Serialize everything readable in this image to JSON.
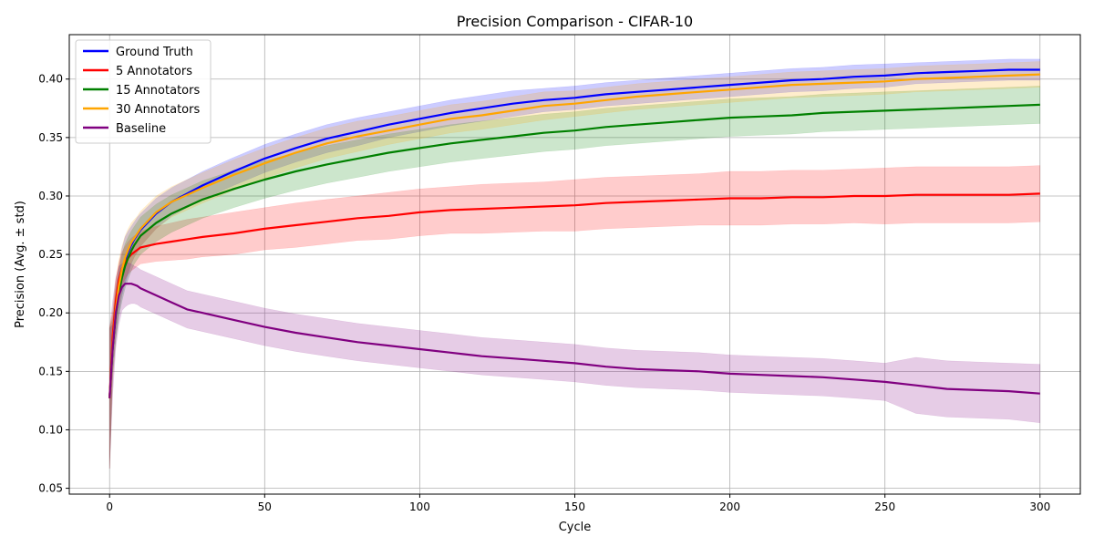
{
  "chart_data": {
    "type": "line",
    "title": "Precision Comparison - CIFAR-10",
    "xlabel": "Cycle",
    "ylabel": "Precision (Avg. ± std)",
    "xlim": [
      -13,
      313
    ],
    "ylim": [
      0.045,
      0.438
    ],
    "xticks": [
      0,
      50,
      100,
      150,
      200,
      250,
      300
    ],
    "yticks": [
      0.05,
      0.1,
      0.15,
      0.2,
      0.25,
      0.3,
      0.35,
      0.4
    ],
    "ytick_labels": [
      "0.05",
      "0.10",
      "0.15",
      "0.20",
      "0.25",
      "0.30",
      "0.35",
      "0.40"
    ],
    "grid": true,
    "legend_position": "top-left",
    "x": [
      0,
      1,
      2,
      3,
      4,
      5,
      6,
      7,
      8,
      9,
      10,
      15,
      20,
      25,
      30,
      40,
      50,
      60,
      70,
      80,
      90,
      100,
      110,
      120,
      130,
      140,
      150,
      160,
      170,
      180,
      190,
      200,
      210,
      220,
      230,
      240,
      250,
      260,
      270,
      280,
      290,
      300
    ],
    "series": [
      {
        "name": "Ground Truth",
        "color": "#0000ff",
        "values": [
          0.127,
          0.17,
          0.2,
          0.22,
          0.235,
          0.245,
          0.252,
          0.258,
          0.263,
          0.267,
          0.271,
          0.285,
          0.295,
          0.302,
          0.309,
          0.321,
          0.332,
          0.341,
          0.349,
          0.355,
          0.361,
          0.366,
          0.371,
          0.375,
          0.379,
          0.382,
          0.384,
          0.387,
          0.389,
          0.391,
          0.393,
          0.395,
          0.397,
          0.399,
          0.4,
          0.402,
          0.403,
          0.405,
          0.406,
          0.407,
          0.408,
          0.408
        ],
        "std": [
          0.06,
          0.02,
          0.02,
          0.02,
          0.02,
          0.02,
          0.018,
          0.016,
          0.015,
          0.015,
          0.014,
          0.013,
          0.012,
          0.012,
          0.012,
          0.012,
          0.012,
          0.012,
          0.012,
          0.012,
          0.011,
          0.011,
          0.011,
          0.011,
          0.011,
          0.01,
          0.01,
          0.01,
          0.01,
          0.01,
          0.01,
          0.01,
          0.01,
          0.01,
          0.01,
          0.01,
          0.01,
          0.009,
          0.009,
          0.009,
          0.009,
          0.009
        ]
      },
      {
        "name": "5 Annotators",
        "color": "#ff0000",
        "values": [
          0.127,
          0.18,
          0.21,
          0.228,
          0.238,
          0.243,
          0.247,
          0.25,
          0.252,
          0.254,
          0.256,
          0.259,
          0.261,
          0.263,
          0.265,
          0.268,
          0.272,
          0.275,
          0.278,
          0.281,
          0.283,
          0.286,
          0.288,
          0.289,
          0.29,
          0.291,
          0.292,
          0.294,
          0.295,
          0.296,
          0.297,
          0.298,
          0.298,
          0.299,
          0.299,
          0.3,
          0.3,
          0.301,
          0.301,
          0.301,
          0.301,
          0.302
        ],
        "std": [
          0.06,
          0.02,
          0.018,
          0.015,
          0.014,
          0.014,
          0.014,
          0.014,
          0.014,
          0.014,
          0.014,
          0.015,
          0.016,
          0.017,
          0.017,
          0.018,
          0.018,
          0.019,
          0.019,
          0.019,
          0.02,
          0.02,
          0.02,
          0.021,
          0.021,
          0.021,
          0.022,
          0.022,
          0.022,
          0.022,
          0.022,
          0.023,
          0.023,
          0.023,
          0.023,
          0.023,
          0.024,
          0.024,
          0.024,
          0.024,
          0.024,
          0.024
        ]
      },
      {
        "name": "15 Annotators",
        "color": "#008000",
        "values": [
          0.127,
          0.17,
          0.198,
          0.217,
          0.23,
          0.24,
          0.247,
          0.253,
          0.258,
          0.262,
          0.266,
          0.277,
          0.285,
          0.291,
          0.297,
          0.306,
          0.314,
          0.321,
          0.327,
          0.332,
          0.337,
          0.341,
          0.345,
          0.348,
          0.351,
          0.354,
          0.356,
          0.359,
          0.361,
          0.363,
          0.365,
          0.367,
          0.368,
          0.369,
          0.371,
          0.372,
          0.373,
          0.374,
          0.375,
          0.376,
          0.377,
          0.378
        ],
        "std": [
          0.06,
          0.025,
          0.022,
          0.02,
          0.02,
          0.019,
          0.018,
          0.017,
          0.016,
          0.016,
          0.016,
          0.016,
          0.016,
          0.016,
          0.016,
          0.016,
          0.016,
          0.016,
          0.016,
          0.016,
          0.016,
          0.016,
          0.016,
          0.016,
          0.016,
          0.016,
          0.016,
          0.016,
          0.016,
          0.016,
          0.016,
          0.016,
          0.016,
          0.016,
          0.016,
          0.016,
          0.016,
          0.016,
          0.016,
          0.016,
          0.016,
          0.016
        ]
      },
      {
        "name": "30 Annotators",
        "color": "#ffa500",
        "values": [
          0.127,
          0.172,
          0.203,
          0.223,
          0.237,
          0.247,
          0.254,
          0.26,
          0.264,
          0.268,
          0.272,
          0.286,
          0.295,
          0.301,
          0.307,
          0.318,
          0.328,
          0.337,
          0.345,
          0.351,
          0.356,
          0.361,
          0.366,
          0.369,
          0.373,
          0.377,
          0.379,
          0.382,
          0.385,
          0.387,
          0.389,
          0.391,
          0.393,
          0.395,
          0.396,
          0.397,
          0.398,
          0.4,
          0.401,
          0.402,
          0.403,
          0.404
        ],
        "std": [
          0.06,
          0.03,
          0.025,
          0.022,
          0.02,
          0.019,
          0.018,
          0.017,
          0.016,
          0.015,
          0.015,
          0.014,
          0.013,
          0.013,
          0.013,
          0.013,
          0.013,
          0.013,
          0.013,
          0.013,
          0.012,
          0.012,
          0.012,
          0.012,
          0.012,
          0.012,
          0.011,
          0.011,
          0.011,
          0.011,
          0.011,
          0.011,
          0.011,
          0.011,
          0.011,
          0.011,
          0.011,
          0.011,
          0.011,
          0.011,
          0.011,
          0.011
        ]
      },
      {
        "name": "Baseline",
        "color": "#800080",
        "values": [
          0.127,
          0.17,
          0.2,
          0.215,
          0.222,
          0.225,
          0.225,
          0.225,
          0.224,
          0.223,
          0.221,
          0.215,
          0.209,
          0.203,
          0.2,
          0.194,
          0.188,
          0.183,
          0.179,
          0.175,
          0.172,
          0.169,
          0.166,
          0.163,
          0.161,
          0.159,
          0.157,
          0.154,
          0.152,
          0.151,
          0.15,
          0.148,
          0.147,
          0.146,
          0.145,
          0.143,
          0.141,
          0.138,
          0.135,
          0.134,
          0.133,
          0.131
        ],
        "std": [
          0.06,
          0.04,
          0.03,
          0.025,
          0.02,
          0.02,
          0.018,
          0.017,
          0.016,
          0.016,
          0.016,
          0.016,
          0.016,
          0.016,
          0.016,
          0.016,
          0.016,
          0.016,
          0.016,
          0.016,
          0.016,
          0.016,
          0.016,
          0.016,
          0.016,
          0.016,
          0.016,
          0.016,
          0.016,
          0.016,
          0.016,
          0.016,
          0.016,
          0.016,
          0.016,
          0.016,
          0.016,
          0.024,
          0.024,
          0.024,
          0.024,
          0.025
        ]
      }
    ]
  }
}
